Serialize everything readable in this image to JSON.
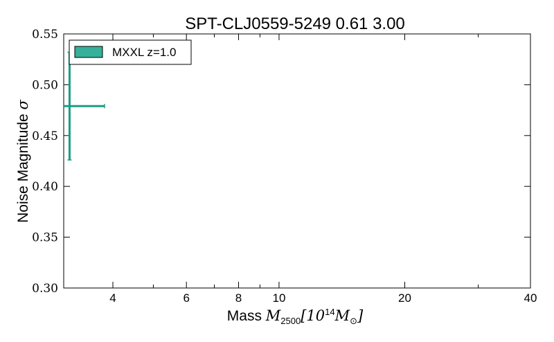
{
  "chart_data": {
    "type": "scatter",
    "title": "SPT-CLJ0559-5249 0.61 3.00",
    "xlabel": {
      "prefix": "Mass ",
      "math": "M",
      "sub": "2500",
      "bracket_open": "[10",
      "sup": "14",
      "unit_math": "M",
      "unit_sub": "⊙",
      "bracket_close": "]"
    },
    "ylabel": {
      "text": "Noise Magnitude ",
      "math": "σ"
    },
    "xscale": "log",
    "xlim": [
      3.05,
      40
    ],
    "ylim": [
      0.3,
      0.55
    ],
    "x_major_ticks": [
      {
        "value": 4,
        "label": "4"
      },
      {
        "value": 6,
        "label": "6"
      },
      {
        "value": 8,
        "label": "8"
      },
      {
        "value": 10,
        "label": "10"
      },
      {
        "value": 20,
        "label": "20"
      },
      {
        "value": 40,
        "label": "40"
      }
    ],
    "x_minor_ticks": [
      5,
      7,
      9,
      30
    ],
    "y_ticks": [
      {
        "value": 0.3,
        "label": "0.30"
      },
      {
        "value": 0.35,
        "label": "0.35"
      },
      {
        "value": 0.4,
        "label": "0.40"
      },
      {
        "value": 0.45,
        "label": "0.45"
      },
      {
        "value": 0.5,
        "label": "0.50"
      },
      {
        "value": 0.55,
        "label": "0.55"
      }
    ],
    "grid": false,
    "legend_position": "top-left",
    "series": [
      {
        "name": "MXXL z=1.0",
        "color": "#1a9e83",
        "legend_fill": "#35b09a",
        "points": [
          {
            "x": 3.15,
            "y": 0.479,
            "xerr": [
              3.05,
              3.82
            ],
            "yerr": [
              0.426,
              0.532
            ]
          }
        ]
      }
    ]
  }
}
